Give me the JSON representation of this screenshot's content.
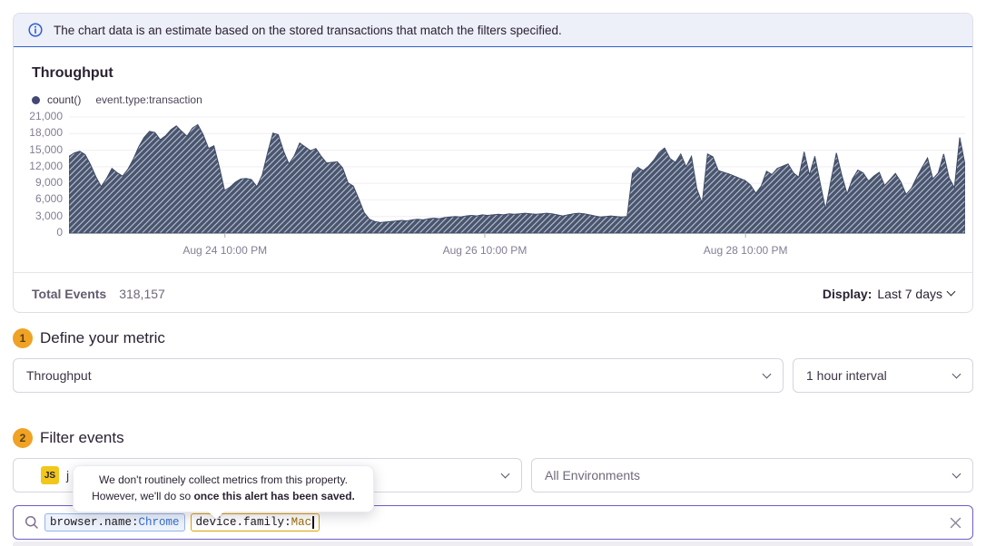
{
  "banner": {
    "text": "The chart data is an estimate based on the stored transactions that match the filters specified."
  },
  "chart_panel": {
    "title": "Throughput",
    "legend_series": "count()",
    "legend_filter": "event.type:transaction",
    "footer": {
      "total_label": "Total Events",
      "total_value": "318,157",
      "display_label": "Display:",
      "display_value": "Last 7 days"
    }
  },
  "chart_data": {
    "type": "area",
    "title": "Throughput",
    "ylabel": "",
    "xlabel": "",
    "ylim": [
      0,
      21000
    ],
    "grid": true,
    "legend_position": "top-left",
    "fill_color": "#4A5670",
    "hatch": true,
    "interval": "1 hour",
    "y_tick_labels": [
      "21,000",
      "18,000",
      "15,000",
      "12,000",
      "9,000",
      "6,000",
      "3,000",
      "0"
    ],
    "x_ticks": [
      {
        "label": "Aug 24 10:00 PM",
        "pos": 0.174
      },
      {
        "label": "Aug 26 10:00 PM",
        "pos": 0.464
      },
      {
        "label": "Aug 28 10:00 PM",
        "pos": 0.755
      }
    ],
    "series": [
      {
        "name": "count()",
        "values": [
          13900,
          14500,
          14800,
          14200,
          12400,
          10200,
          8400,
          9900,
          11700,
          10900,
          10300,
          11600,
          13400,
          15600,
          17300,
          18400,
          18200,
          16900,
          17600,
          18700,
          19400,
          18400,
          17500,
          19000,
          19600,
          17800,
          15300,
          15800,
          12000,
          7700,
          8300,
          9200,
          9800,
          9900,
          9700,
          8400,
          10500,
          14500,
          18100,
          17800,
          14800,
          12500,
          14000,
          16300,
          15600,
          14900,
          15300,
          13900,
          12700,
          12800,
          12900,
          11800,
          9100,
          8500,
          6200,
          3700,
          2500,
          2100,
          1900,
          2000,
          2100,
          2200,
          2300,
          2200,
          2400,
          2500,
          2400,
          2600,
          2700,
          2600,
          2800,
          2900,
          3000,
          2900,
          3100,
          3200,
          3100,
          3300,
          3200,
          3300,
          3400,
          3300,
          3500,
          3400,
          3500,
          3600,
          3500,
          3400,
          3500,
          3600,
          3500,
          3300,
          3100,
          3300,
          3500,
          3600,
          3500,
          3300,
          3100,
          2900,
          3000,
          3100,
          3000,
          2900,
          3000,
          10800,
          11900,
          11300,
          12100,
          13200,
          14600,
          15400,
          13500,
          12800,
          14300,
          12000,
          13900,
          8000,
          5400,
          14300,
          13800,
          11300,
          11000,
          10700,
          10300,
          9900,
          9500,
          8700,
          7200,
          8500,
          11200,
          10600,
          11700,
          12100,
          12500,
          10900,
          10100,
          14700,
          10500,
          13900,
          9000,
          4300,
          9500,
          14500,
          10500,
          7100,
          9800,
          11400,
          10900,
          9400,
          10300,
          11000,
          8600,
          9700,
          10800,
          9300,
          7000,
          8100,
          10100,
          11900,
          13600,
          9800,
          10900,
          14300,
          10000,
          8200,
          17300,
          12300
        ]
      }
    ]
  },
  "sections": {
    "metric": {
      "number": "1",
      "title": "Define your metric",
      "metric_select_value": "Throughput",
      "interval_select_value": "1 hour interval"
    },
    "filter": {
      "number": "2",
      "title": "Filter events",
      "project_icon": "JS",
      "project_visible_text": "j",
      "environment_select_value": "All Environments"
    }
  },
  "tooltip": {
    "line1": "We don't routinely collect metrics from this property.",
    "line2_prefix": "However, we'll do so ",
    "line2_bold": "once this alert has been saved."
  },
  "search": {
    "tokens": [
      {
        "key": "browser.name:",
        "value": "Chrome"
      },
      {
        "key": "device.family:",
        "value": "Mac"
      }
    ]
  },
  "colors": {
    "accent_purple": "#6C5FC7",
    "banner_blue": "#2E5FD0",
    "badge_amber": "#F0A225",
    "chart_fill": "#4A5670",
    "token_blue": "#2F6FD3",
    "token_amber": "#DFA000"
  }
}
